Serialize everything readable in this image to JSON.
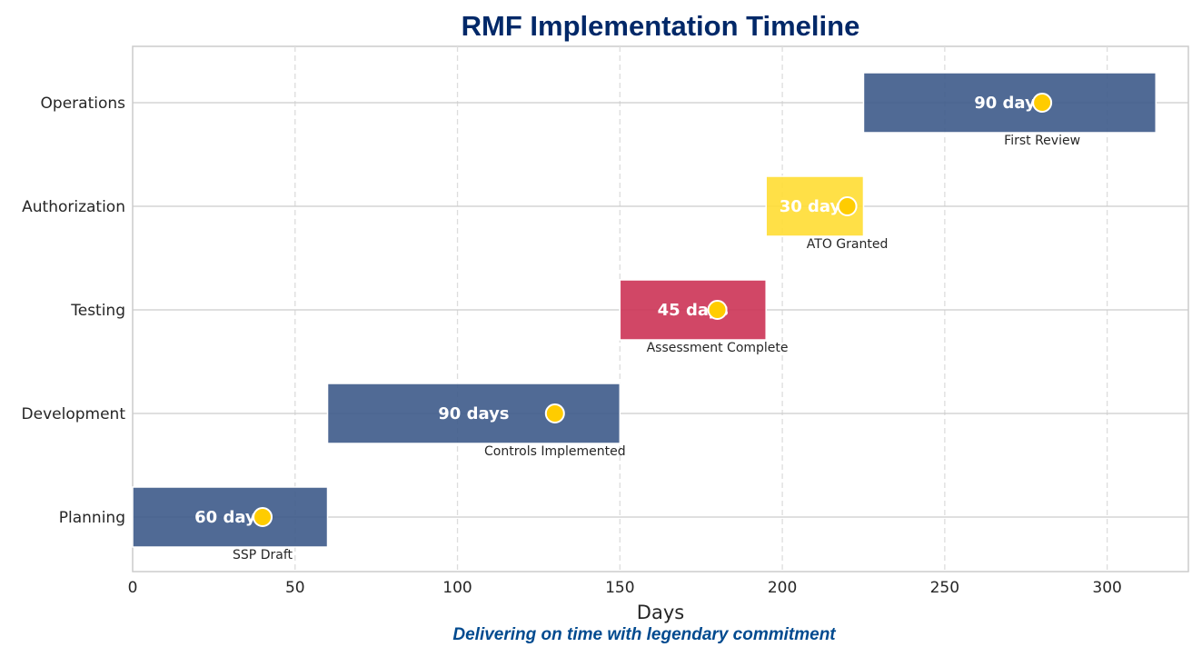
{
  "chart_data": {
    "type": "bar",
    "orientation": "horizontal",
    "title": "RMF Implementation Timeline",
    "xlabel": "Days",
    "xlim": [
      0,
      325
    ],
    "xticks": [
      0,
      50,
      100,
      150,
      200,
      250,
      300
    ],
    "grid": true,
    "categories": [
      "Planning",
      "Development",
      "Testing",
      "Authorization",
      "Operations"
    ],
    "bars": [
      {
        "category": "Planning",
        "start": 0,
        "duration": 60,
        "label": "60 days",
        "color": "#3d5a8a",
        "milestone_day": 40,
        "milestone": "SSP Draft"
      },
      {
        "category": "Development",
        "start": 60,
        "duration": 90,
        "label": "90 days",
        "color": "#3d5a8a",
        "milestone_day": 130,
        "milestone": "Controls Implemented"
      },
      {
        "category": "Testing",
        "start": 150,
        "duration": 45,
        "label": "45 days",
        "color": "#cc3355",
        "milestone_day": 180,
        "milestone": "Assessment Complete"
      },
      {
        "category": "Authorization",
        "start": 195,
        "duration": 30,
        "label": "30 days",
        "color": "#ffdd33",
        "milestone_day": 220,
        "milestone": "ATO Granted"
      },
      {
        "category": "Operations",
        "start": 225,
        "duration": 90,
        "label": "90 days",
        "color": "#3d5a8a",
        "milestone_day": 280,
        "milestone": "First Review"
      }
    ],
    "milestone_color": "#ffcc00"
  },
  "subtitle": "Delivering on time with legendary commitment",
  "colors": {
    "title": "#002868",
    "subtitle": "#004a8f"
  }
}
